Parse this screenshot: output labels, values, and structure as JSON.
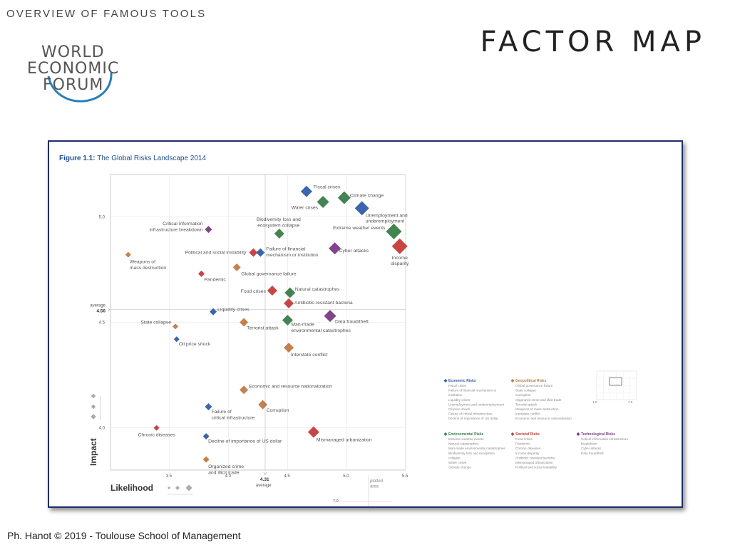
{
  "header": {
    "kicker": "OVERVIEW OF FAMOUS TOOLS",
    "title": "FACTOR MAP"
  },
  "logo": {
    "lines": [
      "WORLD",
      "ECONOMIC",
      "FORUM"
    ]
  },
  "footer": {
    "text": "Ph. Hanot © 2019  -  Toulouse School of Management"
  },
  "figure": {
    "label": "Figure 1.1:",
    "caption": "The Global Risks Landscape 2014"
  },
  "chart_data": {
    "type": "scatter",
    "xlabel": "Likelihood",
    "ylabel": "Impact",
    "xlim": [
      3.0,
      5.5
    ],
    "ylim": [
      3.8,
      5.2
    ],
    "x_ticks": [
      "3.5",
      "4.0",
      "4.5",
      "5.0",
      "5.5"
    ],
    "y_ticks": [
      "4.0",
      "4.5",
      "5.0"
    ],
    "x_average": {
      "value": "4.31",
      "label": "average"
    },
    "y_average": {
      "value": "4.56",
      "label": "average"
    },
    "plotted_area_label": "plotted\narea",
    "plotted_area_tick": "7.0",
    "mini_plot": {
      "x_ticks": [
        "1.0",
        "7.0"
      ]
    },
    "categories": {
      "economic": {
        "name": "Economic Risks",
        "color": "#2e5ea8"
      },
      "environmental": {
        "name": "Environmental Risks",
        "color": "#3a7d4a"
      },
      "geopolitical": {
        "name": "Geopolitical Risks",
        "color": "#c07a45"
      },
      "societal": {
        "name": "Societal Risks",
        "color": "#c43b3b"
      },
      "technological": {
        "name": "Technological Risks",
        "color": "#7a3a84"
      }
    },
    "points": [
      {
        "label": "Fiscal crises",
        "cat": "economic",
        "x": 4.66,
        "y": 5.12,
        "s": 8
      },
      {
        "label": "Climate change",
        "cat": "environmental",
        "x": 4.98,
        "y": 5.09,
        "s": 9
      },
      {
        "label": "Water crises",
        "cat": "environmental",
        "x": 4.8,
        "y": 5.07,
        "s": 8.5
      },
      {
        "label": "Unemployment and\nunderemployment",
        "cat": "economic",
        "x": 5.13,
        "y": 5.04,
        "s": 10
      },
      {
        "label": "Extreme weather events",
        "cat": "environmental",
        "x": 5.4,
        "y": 4.93,
        "s": 11
      },
      {
        "label": "Income\ndisparity",
        "cat": "societal",
        "x": 5.45,
        "y": 4.86,
        "s": 11
      },
      {
        "label": "Critical information\ninfrastructure breakdown",
        "cat": "technological",
        "x": 3.83,
        "y": 4.94,
        "s": 5
      },
      {
        "label": "Biodiversity loss and\necosystem collapse",
        "cat": "environmental",
        "x": 4.43,
        "y": 4.92,
        "s": 7
      },
      {
        "label": "Cyber attacks",
        "cat": "technological",
        "x": 4.9,
        "y": 4.85,
        "s": 8.5
      },
      {
        "label": "Political and social instability",
        "cat": "societal",
        "x": 4.21,
        "y": 4.83,
        "s": 6
      },
      {
        "label": "Failure of financial\nmechanism or institution",
        "cat": "economic",
        "x": 4.27,
        "y": 4.83,
        "s": 6
      },
      {
        "label": "Weapons of\nmass destruction",
        "cat": "geopolitical",
        "x": 3.15,
        "y": 4.82,
        "s": 4
      },
      {
        "label": "Global governance failure",
        "cat": "geopolitical",
        "x": 4.07,
        "y": 4.76,
        "s": 5.5
      },
      {
        "label": "Pandemic",
        "cat": "societal",
        "x": 3.77,
        "y": 4.73,
        "s": 4.5
      },
      {
        "label": "Food crises",
        "cat": "societal",
        "x": 4.37,
        "y": 4.65,
        "s": 7
      },
      {
        "label": "Natural catastrophes",
        "cat": "environmental",
        "x": 4.52,
        "y": 4.64,
        "s": 7.5
      },
      {
        "label": "Antibiotic-resistant bacteria",
        "cat": "societal",
        "x": 4.51,
        "y": 4.59,
        "s": 7
      },
      {
        "label": "Liquidity crises",
        "cat": "economic",
        "x": 3.87,
        "y": 4.55,
        "s": 5
      },
      {
        "label": "Data fraud/theft",
        "cat": "technological",
        "x": 4.86,
        "y": 4.53,
        "s": 8.5
      },
      {
        "label": "Man-made\nenvironmental catastrophes",
        "cat": "environmental",
        "x": 4.5,
        "y": 4.51,
        "s": 7.5
      },
      {
        "label": "Terrorist attack",
        "cat": "geopolitical",
        "x": 4.13,
        "y": 4.5,
        "s": 6
      },
      {
        "label": "State collapse",
        "cat": "geopolitical",
        "x": 3.55,
        "y": 4.48,
        "s": 4
      },
      {
        "label": "Oil price shock",
        "cat": "economic",
        "x": 3.56,
        "y": 4.42,
        "s": 4
      },
      {
        "label": "Interstate conflict",
        "cat": "geopolitical",
        "x": 4.51,
        "y": 4.38,
        "s": 7
      },
      {
        "label": "Economic and resource nationalization",
        "cat": "geopolitical",
        "x": 4.13,
        "y": 4.18,
        "s": 6
      },
      {
        "label": "Failure of\ncritical infrastructure",
        "cat": "economic",
        "x": 3.83,
        "y": 4.1,
        "s": 5
      },
      {
        "label": "Corruption",
        "cat": "geopolitical",
        "x": 4.29,
        "y": 4.11,
        "s": 6.5
      },
      {
        "label": "Chronic diseases",
        "cat": "societal",
        "x": 3.39,
        "y": 4.0,
        "s": 4
      },
      {
        "label": "Mismanaged urbanization",
        "cat": "societal",
        "x": 4.72,
        "y": 3.98,
        "s": 8
      },
      {
        "label": "Decline of importance of US dollar",
        "cat": "economic",
        "x": 3.81,
        "y": 3.96,
        "s": 4.5
      },
      {
        "label": "Organized crime\nand illicit trade",
        "cat": "geopolitical",
        "x": 3.81,
        "y": 3.85,
        "s": 4.5
      }
    ],
    "legend_groups": [
      {
        "cat": "economic",
        "items": [
          "Fiscal crises",
          "Failure of financial mechanism or",
          "institution",
          "Liquidity crises",
          "Unemployment and underemployment",
          "Oil price shock",
          "Failure of critical infrastructure",
          "Decline of importance of US dollar"
        ]
      },
      {
        "cat": "geopolitical",
        "items": [
          "Global governance failure",
          "State collapse",
          "Corruption",
          "Organized crime and illicit trade",
          "Terrorist attack",
          "Weapons of mass destruction",
          "Interstate conflict",
          "Economic and resource nationalization"
        ]
      },
      {
        "cat": "environmental",
        "items": [
          "Extreme weather events",
          "Natural catastrophes",
          "Man-made environmental catastrophes",
          "Biodiversity loss and ecosystem",
          "collapse",
          "Water crises",
          "Climate change"
        ]
      },
      {
        "cat": "societal",
        "items": [
          "Food crises",
          "Pandemic",
          "Chronic diseases",
          "Income disparity",
          "Antibiotic resistant bacteria",
          "Mismanaged urbanization",
          "Political and social instability"
        ]
      },
      {
        "cat": "technological",
        "items": [
          "Critical information infrastructure",
          "breakdown",
          "Cyber attacks",
          "Data fraud/theft"
        ]
      }
    ]
  }
}
